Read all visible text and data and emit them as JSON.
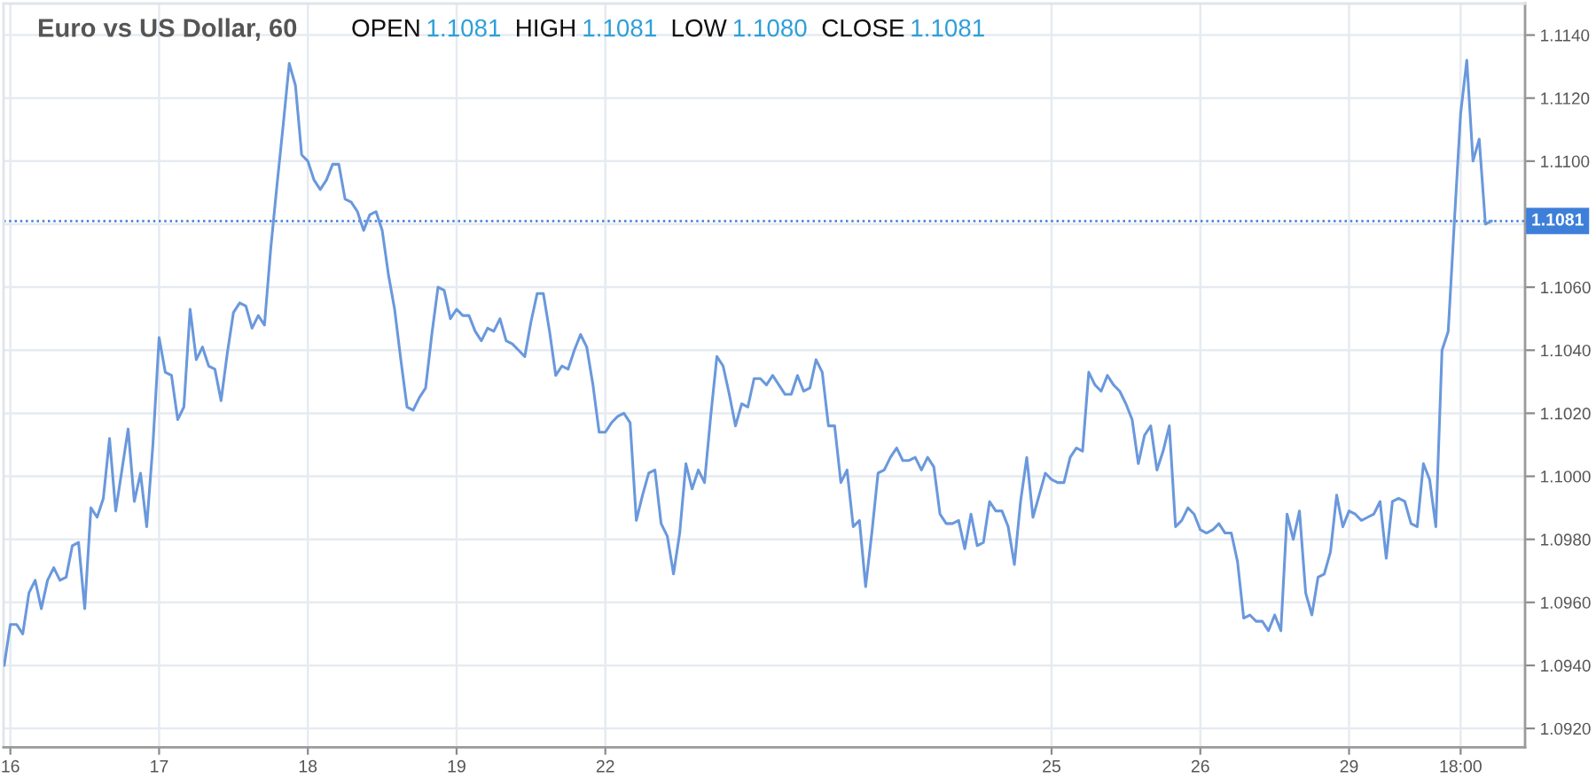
{
  "chart_data": {
    "type": "line",
    "title": "Euro vs US Dollar, 60",
    "annotations": [
      "OPEN 1.1081",
      "HIGH 1.1081",
      "LOW 1.1080",
      "CLOSE 1.1081"
    ],
    "categories": [
      null,
      "16",
      null,
      null,
      null,
      null,
      null,
      null,
      null,
      null,
      null,
      null,
      null,
      null,
      null,
      null,
      null,
      null,
      null,
      null,
      null,
      null,
      null,
      null,
      null,
      "17",
      null,
      null,
      null,
      null,
      null,
      null,
      null,
      null,
      null,
      null,
      null,
      null,
      null,
      null,
      null,
      null,
      null,
      null,
      null,
      null,
      null,
      null,
      null,
      "18",
      null,
      null,
      null,
      null,
      null,
      null,
      null,
      null,
      null,
      null,
      null,
      null,
      null,
      null,
      null,
      null,
      null,
      null,
      null,
      null,
      null,
      null,
      null,
      "19",
      null,
      null,
      null,
      null,
      null,
      null,
      null,
      null,
      null,
      null,
      null,
      null,
      null,
      null,
      null,
      null,
      null,
      null,
      null,
      null,
      null,
      null,
      null,
      "22",
      null,
      null,
      null,
      null,
      null,
      null,
      null,
      null,
      null,
      null,
      null,
      null,
      null,
      null,
      null,
      null,
      null,
      null,
      null,
      null,
      null,
      null,
      null,
      null,
      null,
      null,
      null,
      null,
      null,
      null,
      null,
      null,
      null,
      null,
      null,
      null,
      null,
      null,
      null,
      null,
      null,
      null,
      null,
      null,
      null,
      null,
      null,
      null,
      null,
      null,
      null,
      null,
      null,
      null,
      null,
      null,
      null,
      null,
      null,
      null,
      null,
      null,
      null,
      null,
      null,
      null,
      null,
      null,
      null,
      null,
      null,
      "25",
      null,
      null,
      null,
      null,
      null,
      null,
      null,
      null,
      null,
      null,
      null,
      null,
      null,
      null,
      null,
      null,
      null,
      null,
      null,
      null,
      null,
      null,
      null,
      "26",
      null,
      null,
      null,
      null,
      null,
      null,
      null,
      null,
      null,
      null,
      null,
      null,
      null,
      null,
      null,
      null,
      null,
      null,
      null,
      null,
      null,
      null,
      null,
      "29",
      null,
      null,
      null,
      null,
      null,
      null,
      null,
      null,
      null,
      null,
      null,
      null,
      null,
      null,
      null,
      null,
      null,
      "18:00",
      null,
      null,
      null,
      null,
      null
    ],
    "series": [
      {
        "color": "#6a98dc",
        "values": [
          1.094,
          1.0953,
          1.0953,
          1.095,
          1.0963,
          1.0967,
          1.0958,
          1.0967,
          1.0971,
          1.0967,
          1.0968,
          1.0978,
          1.0979,
          1.0958,
          1.099,
          1.0987,
          1.0993,
          1.1012,
          1.0989,
          1.1002,
          1.1015,
          1.0992,
          1.1001,
          1.0984,
          1.101,
          1.1044,
          1.1033,
          1.1032,
          1.1018,
          1.1022,
          1.1053,
          1.1037,
          1.1041,
          1.1035,
          1.1034,
          1.1024,
          1.1039,
          1.1052,
          1.1055,
          1.1054,
          1.1047,
          1.1051,
          1.1048,
          1.1072,
          1.1092,
          1.1111,
          1.1131,
          1.1124,
          1.1102,
          1.11,
          1.1094,
          1.1091,
          1.1094,
          1.1099,
          1.1099,
          1.1088,
          1.1087,
          1.1084,
          1.1078,
          1.1083,
          1.1084,
          1.1078,
          1.1064,
          1.1053,
          1.1037,
          1.1022,
          1.1021,
          1.1025,
          1.1028,
          1.1045,
          1.106,
          1.1059,
          1.105,
          1.1053,
          1.1051,
          1.1051,
          1.1046,
          1.1043,
          1.1047,
          1.1046,
          1.105,
          1.1043,
          1.1042,
          1.104,
          1.1038,
          1.1049,
          1.1058,
          1.1058,
          1.1046,
          1.1032,
          1.1035,
          1.1034,
          1.104,
          1.1045,
          1.1041,
          1.1029,
          1.1014,
          1.1014,
          1.1017,
          1.1019,
          1.102,
          1.1017,
          1.0986,
          1.0994,
          1.1001,
          1.1002,
          1.0985,
          1.0981,
          1.0969,
          1.0982,
          1.1004,
          1.0996,
          1.1002,
          1.0998,
          1.1019,
          1.1038,
          1.1035,
          1.1026,
          1.1016,
          1.1023,
          1.1022,
          1.1031,
          1.1031,
          1.1029,
          1.1032,
          1.1029,
          1.1026,
          1.1026,
          1.1032,
          1.1027,
          1.1028,
          1.1037,
          1.1033,
          1.1016,
          1.1016,
          1.0998,
          1.1002,
          1.0984,
          1.0986,
          1.0965,
          1.0982,
          1.1001,
          1.1002,
          1.1006,
          1.1009,
          1.1005,
          1.1005,
          1.1006,
          1.1002,
          1.1006,
          1.1003,
          1.0988,
          1.0985,
          1.0985,
          1.0986,
          1.0977,
          1.0988,
          1.0978,
          1.0979,
          1.0992,
          1.0989,
          1.0989,
          1.0984,
          1.0972,
          1.0992,
          1.1006,
          1.0987,
          1.0994,
          1.1001,
          1.0999,
          1.0998,
          1.0998,
          1.1006,
          1.1009,
          1.1008,
          1.1033,
          1.1029,
          1.1027,
          1.1032,
          1.1029,
          1.1027,
          1.1023,
          1.1018,
          1.1004,
          1.1013,
          1.1016,
          1.1002,
          1.1008,
          1.1016,
          1.0984,
          1.0986,
          1.099,
          1.0988,
          1.0983,
          1.0982,
          1.0983,
          1.0985,
          1.0982,
          1.0982,
          1.0973,
          1.0955,
          1.0956,
          1.0954,
          1.0954,
          1.0951,
          1.0956,
          1.0951,
          1.0988,
          1.098,
          1.0989,
          1.0963,
          1.0956,
          1.0968,
          1.0969,
          1.0976,
          1.0994,
          1.0984,
          1.0989,
          1.0988,
          1.0986,
          1.0987,
          1.0988,
          1.0992,
          1.0974,
          1.0992,
          1.0993,
          1.0992,
          1.0985,
          1.0984,
          1.1004,
          1.0999,
          1.0984,
          1.104,
          1.1046,
          1.1081,
          1.1115,
          1.1132,
          1.11,
          1.1107,
          1.108,
          1.1081
        ]
      }
    ],
    "ylim": [
      1.0914,
      1.115
    ],
    "yticks": [
      {
        "value": 1.092,
        "label": "1.0920"
      },
      {
        "value": 1.094,
        "label": "1.0940"
      },
      {
        "value": 1.096,
        "label": "1.0960"
      },
      {
        "value": 1.098,
        "label": "1.0980"
      },
      {
        "value": 1.1,
        "label": "1.1000"
      },
      {
        "value": 1.102,
        "label": "1.1020"
      },
      {
        "value": 1.104,
        "label": "1.1040"
      },
      {
        "value": 1.106,
        "label": "1.1060"
      },
      {
        "value": 1.108,
        "label": null
      },
      {
        "value": 1.11,
        "label": "1.1100"
      },
      {
        "value": 1.112,
        "label": "1.1120"
      },
      {
        "value": 1.114,
        "label": "1.1140"
      }
    ],
    "grid": true,
    "ref_lines": [
      {
        "axis": "y",
        "value": 1.1081,
        "label": "1.1081",
        "color": "#3d7fd9",
        "line_style": "dotted"
      }
    ]
  }
}
